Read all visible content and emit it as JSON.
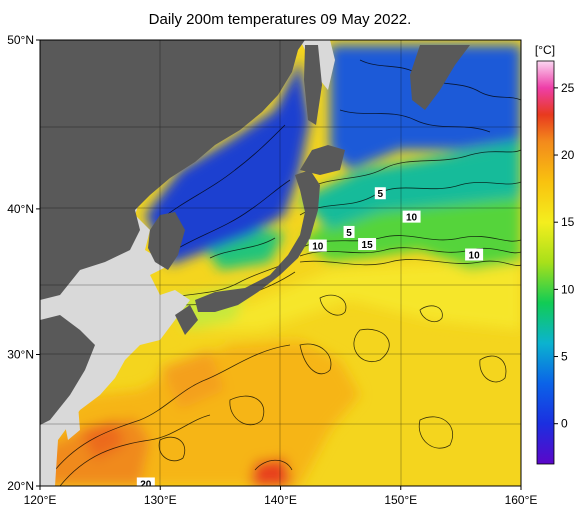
{
  "title": "Daily 200m temperatures 09 May 2022.",
  "map": {
    "lon_range": [
      120,
      160
    ],
    "lat_range": [
      20,
      50
    ],
    "lon_ticks": [
      {
        "value": 120,
        "label": "120°E"
      },
      {
        "value": 130,
        "label": "130°E"
      },
      {
        "value": 140,
        "label": "140°E"
      },
      {
        "value": 150,
        "label": "150°E"
      },
      {
        "value": 160,
        "label": "160°E"
      }
    ],
    "lat_ticks": [
      {
        "value": 50,
        "label": "50°N"
      },
      {
        "value": 40,
        "label": "40°N"
      },
      {
        "value": 30,
        "label": "30°N"
      },
      {
        "value": 20,
        "label": "20°N"
      }
    ],
    "grid": true,
    "land_color": "#595959",
    "out_of_domain_land_color": "#d9d9d9"
  },
  "contour_labels": [
    {
      "text": "5",
      "lon": 148.3,
      "lat": 41.0
    },
    {
      "text": "10",
      "lon": 150.9,
      "lat": 39.5
    },
    {
      "text": "5",
      "lon": 145.7,
      "lat": 38.5
    },
    {
      "text": "10",
      "lon": 143.1,
      "lat": 37.6
    },
    {
      "text": "15",
      "lon": 147.2,
      "lat": 37.7
    },
    {
      "text": "10",
      "lon": 156.1,
      "lat": 37.0
    },
    {
      "text": "20",
      "lon": 128.8,
      "lat": 20.2
    }
  ],
  "colorbar": {
    "unit": "[°C]",
    "min": -3,
    "max": 27,
    "ticks": [
      {
        "value": 25,
        "label": "25"
      },
      {
        "value": 20,
        "label": "20"
      },
      {
        "value": 15,
        "label": "15"
      },
      {
        "value": 10,
        "label": "10"
      },
      {
        "value": 5,
        "label": "5"
      },
      {
        "value": 0,
        "label": "0"
      }
    ],
    "stops": [
      {
        "value": -3,
        "color": "#5b07c9"
      },
      {
        "value": 0,
        "color": "#1b2fe0"
      },
      {
        "value": 3,
        "color": "#0b63e8"
      },
      {
        "value": 6,
        "color": "#0bb3cf"
      },
      {
        "value": 9,
        "color": "#11cc55"
      },
      {
        "value": 12,
        "color": "#a8e01a"
      },
      {
        "value": 15,
        "color": "#f4ee1e"
      },
      {
        "value": 18,
        "color": "#f9c20f"
      },
      {
        "value": 21,
        "color": "#f38a1c"
      },
      {
        "value": 23,
        "color": "#e83a1e"
      },
      {
        "value": 25,
        "color": "#ee3ea8"
      },
      {
        "value": 27,
        "color": "#fbd7f2"
      }
    ]
  }
}
